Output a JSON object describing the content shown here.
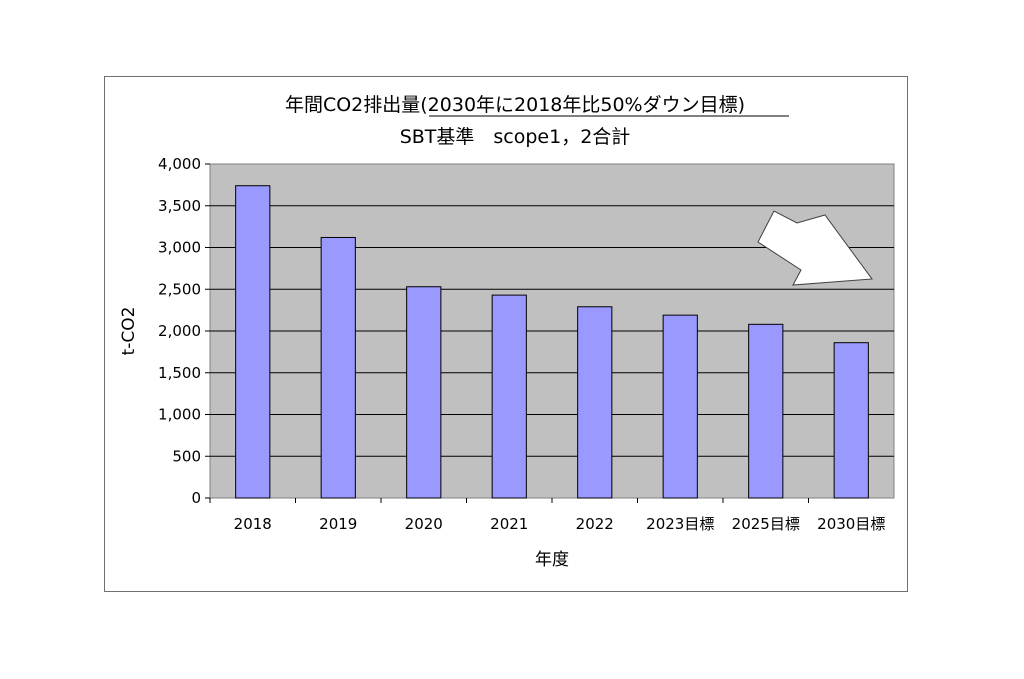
{
  "chart_data": {
    "type": "bar",
    "title": "年間CO2排出量(2030年に2018年比50%ダウン目標)",
    "subtitle": "SBT基準　scope1，2合計",
    "xlabel": "年度",
    "ylabel": "t-CO2",
    "categories": [
      "2018",
      "2019",
      "2020",
      "2021",
      "2022",
      "2023目標",
      "2025目標",
      "2030目標"
    ],
    "values": [
      3740,
      3120,
      2530,
      2430,
      2290,
      2190,
      2080,
      1860
    ],
    "ylim": [
      0,
      4000
    ],
    "yticks": [
      "0",
      "500",
      "1,000",
      "1,500",
      "2,000",
      "2,500",
      "3,000",
      "3,500",
      "4,000"
    ],
    "grid": true,
    "legend": "none",
    "bar_color": "#9999ff",
    "plot_background": "#c0c0c0",
    "annotation": "arrow-down-right"
  }
}
